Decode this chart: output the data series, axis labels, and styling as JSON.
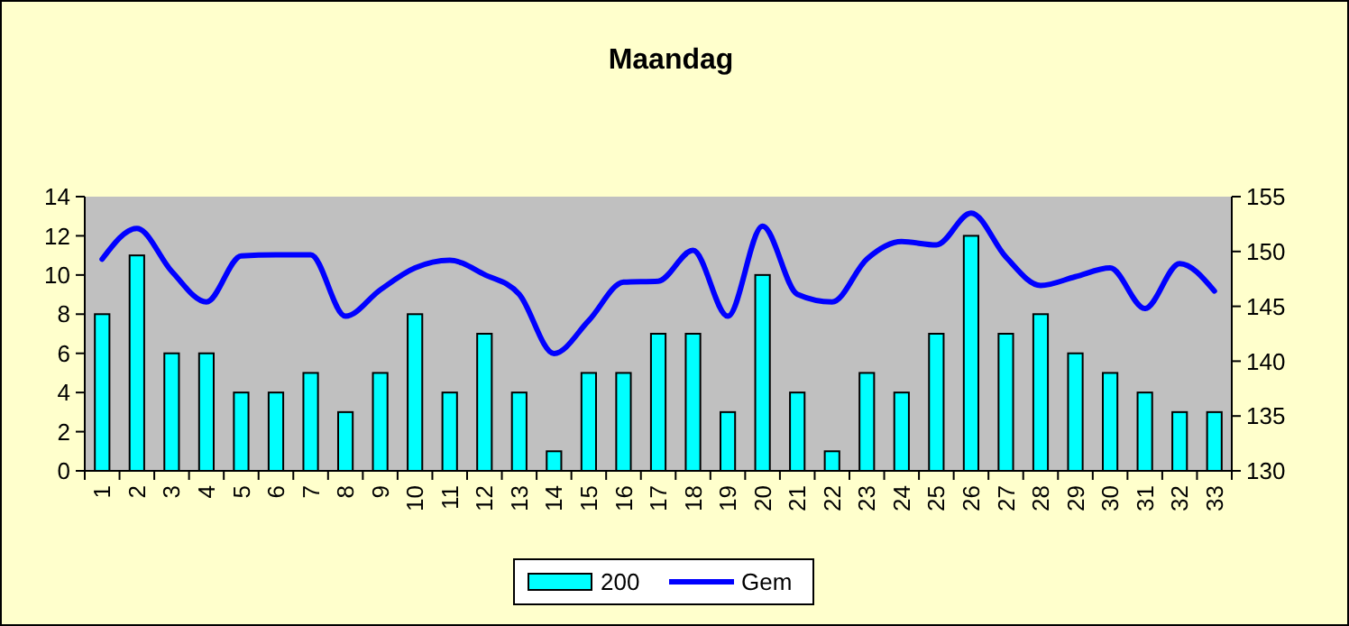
{
  "chart_data": {
    "type": "bar",
    "title": "Maandag",
    "categories": [
      "1",
      "2",
      "3",
      "4",
      "5",
      "6",
      "7",
      "8",
      "9",
      "10",
      "11",
      "12",
      "13",
      "14",
      "15",
      "16",
      "17",
      "18",
      "19",
      "20",
      "21",
      "22",
      "23",
      "24",
      "25",
      "26",
      "27",
      "28",
      "29",
      "30",
      "31",
      "32",
      "33"
    ],
    "series": [
      {
        "name": "200",
        "color": "#00ffff",
        "values": [
          8,
          11,
          6,
          6,
          4,
          4,
          5,
          3,
          5,
          8,
          4,
          7,
          4,
          1,
          5,
          5,
          7,
          7,
          3,
          10,
          4,
          1,
          5,
          4,
          7,
          12,
          7,
          8,
          6,
          5,
          4,
          3,
          3
        ]
      },
      {
        "name": "Gem",
        "type": "line",
        "axis": "y2",
        "color": "#0000ff",
        "values": [
          149.3,
          152.1,
          148.2,
          145.4,
          149.6,
          149.7,
          149.7,
          144.1,
          146.5,
          148.5,
          149.2,
          147.9,
          146.1,
          140.7,
          143.7,
          147.2,
          147.3,
          150.1,
          144.1,
          152.3,
          146.1,
          145.4,
          149.3,
          150.9,
          150.6,
          153.5,
          149.5,
          146.9,
          147.7,
          148.5,
          144.8,
          148.9,
          146.4
        ]
      }
    ],
    "ylim": [
      0,
      14
    ],
    "yticks": [
      0,
      2,
      4,
      6,
      8,
      10,
      12,
      14
    ],
    "y2lim": [
      130,
      155
    ],
    "y2ticks": [
      130,
      135,
      140,
      145,
      150,
      155
    ],
    "grid": false,
    "legend": "bottom",
    "marker": "none",
    "line_style": "solid"
  }
}
